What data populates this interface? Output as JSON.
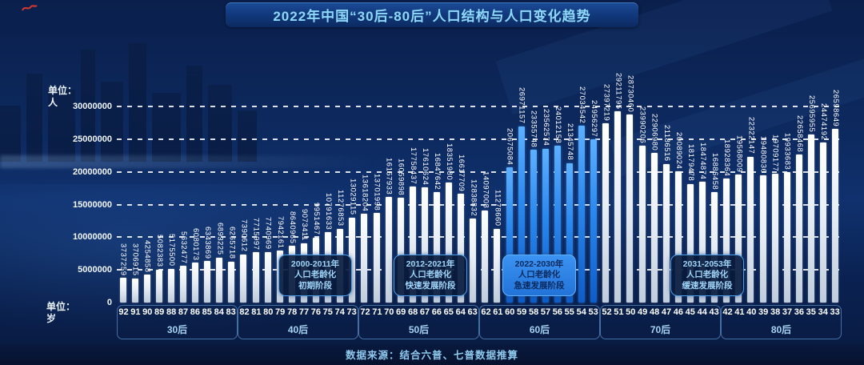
{
  "header": {
    "title": "2022年中国“30后-80后”人口结构与人口变化趋势"
  },
  "y_axis": {
    "unit": "单位：\n人"
  },
  "x_axis": {
    "unit": "单位：\n岁"
  },
  "chart_data": {
    "type": "bar",
    "title": "2022年中国“30后-80后”人口结构与人口变化趋势",
    "ylabel": "单位：人",
    "xlabel": "单位：岁",
    "ylim": [
      0,
      30000000
    ],
    "y_ticks": [
      0,
      5000000,
      10000000,
      15000000,
      20000000,
      25000000,
      30000000
    ],
    "grid": "horizontal-dashed",
    "legend_position": "none",
    "bar_color_default": "#ffffff",
    "bar_color_highlight": "#2a87ec",
    "categories": [
      92,
      91,
      90,
      89,
      88,
      87,
      86,
      85,
      84,
      83,
      82,
      81,
      80,
      79,
      78,
      77,
      76,
      75,
      74,
      73,
      72,
      71,
      70,
      69,
      68,
      67,
      66,
      65,
      64,
      63,
      62,
      61,
      60,
      59,
      58,
      57,
      56,
      55,
      54,
      53,
      52,
      51,
      50,
      49,
      48,
      47,
      46,
      45,
      44,
      43,
      42,
      41,
      40,
      39,
      38,
      37,
      36,
      35,
      34,
      33
    ],
    "values": [
      3737259,
      3706915,
      4254858,
      5082383,
      5175500,
      5632477,
      6080173,
      6343869,
      6893225,
      6265718,
      7390612,
      7715997,
      7740969,
      7942161,
      8640965,
      9073411,
      9951467,
      10791633,
      11276853,
      13029115,
      13618204,
      13701998,
      16157933,
      16059898,
      17758437,
      17610624,
      16847642,
      18351980,
      16617709,
      12838832,
      14097008,
      11278660,
      20675084,
      26971157,
      23355748,
      23562574,
      24012158,
      21345748,
      27034542,
      24956297,
      27397219,
      29211795,
      28730460,
      23990206,
      22906980,
      21186516,
      20089024,
      18179478,
      18474874,
      16886458,
      18928364,
      19568009,
      22322147,
      19480836,
      19709177,
      19933683,
      22658468,
      25695955,
      24474192,
      26598649
    ],
    "highlighted_categories": [
      60,
      59,
      58,
      57,
      56,
      55,
      54,
      53
    ],
    "groups": [
      {
        "label": "30后",
        "from": 92,
        "to": 83
      },
      {
        "label": "40后",
        "from": 82,
        "to": 73
      },
      {
        "label": "50后",
        "from": 72,
        "to": 63
      },
      {
        "label": "60后",
        "from": 62,
        "to": 53
      },
      {
        "label": "70后",
        "from": 52,
        "to": 43
      },
      {
        "label": "80后",
        "from": 42,
        "to": 33
      }
    ]
  },
  "annotations": [
    {
      "lines": [
        "2000-2011年",
        "人口老龄化",
        "初期阶段"
      ],
      "highlighted": false
    },
    {
      "lines": [
        "2012-2021年",
        "人口老龄化",
        "快速发展阶段"
      ],
      "highlighted": false
    },
    {
      "lines": [
        "2022-2030年",
        "人口老龄化",
        "急速发展阶段"
      ],
      "highlighted": true
    },
    {
      "lines": [
        "2031-2053年",
        "人口老龄化",
        "缓速发展阶段"
      ],
      "highlighted": false
    }
  ],
  "footer": {
    "source": "数据来源：结合六普、七普数据推算"
  },
  "colors": {
    "background": "#0d2a60",
    "title_text": "#8ed9fb",
    "bar_default": "#ffffff",
    "bar_highlight": "#2a87ec",
    "callout_text": "#9fd4f7",
    "callout_highlight_bg": "#3b93f2",
    "axis_text": "#ffffff",
    "group_label_text": "#a6d2f2",
    "source_text": "#8fc9ee"
  }
}
